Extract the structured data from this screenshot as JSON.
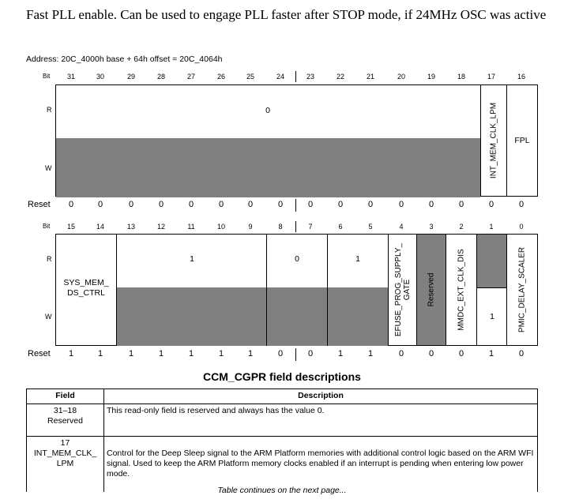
{
  "intro_text": "Fast PLL enable. Can be used to engage PLL faster after STOP mode, if 24MHz OSC was active",
  "address_text": "Address: 20C_4000h base + 64h offset = 20C_4064h",
  "row_labels": {
    "bit": "Bit",
    "read": "R",
    "write": "W",
    "reset": "Reset"
  },
  "upper": {
    "bits": [
      "31",
      "30",
      "29",
      "28",
      "27",
      "26",
      "25",
      "24",
      "23",
      "22",
      "21",
      "20",
      "19",
      "18",
      "17",
      "16"
    ],
    "read_value": "0",
    "field_17": "INT_MEM_CLK_LPM",
    "field_16": "FPL",
    "reset": [
      "0",
      "0",
      "0",
      "0",
      "0",
      "0",
      "0",
      "0",
      "0",
      "0",
      "0",
      "0",
      "0",
      "0",
      "0",
      "0"
    ]
  },
  "lower": {
    "bits": [
      "15",
      "14",
      "13",
      "12",
      "11",
      "10",
      "9",
      "8",
      "7",
      "6",
      "5",
      "4",
      "3",
      "2",
      "1",
      "0"
    ],
    "field_15_14": "SYS_MEM_ DS_CTRL",
    "read_13_9": "1",
    "read_8_7": "0",
    "read_6_5": "1",
    "field_4": "EFUSE_PROG_SUPPLY_ GATE",
    "field_3": "Reserved",
    "field_2": "MMDC_EXT_CLK_DIS",
    "write_1": "1",
    "field_0": "PMIC_DELAY_SCALER",
    "reset": [
      "1",
      "1",
      "1",
      "1",
      "1",
      "1",
      "1",
      "0",
      "0",
      "1",
      "1",
      "0",
      "0",
      "0",
      "1",
      "0"
    ]
  },
  "section_title": "CCM_CGPR field descriptions",
  "table": {
    "headers": [
      "Field",
      "Description"
    ],
    "rows": [
      {
        "field_line1": "31–18",
        "field_line2": "Reserved",
        "field_line3": "",
        "description": "This read-only field is reserved and always has the value 0."
      },
      {
        "field_line1": "17",
        "field_line2": "INT_MEM_CLK_",
        "field_line3": "LPM",
        "description": "Control for the Deep Sleep signal to the ARM Platform memories with additional control logic based on the ARM WFI signal. Used to keep the ARM Platform memory clocks enabled if an interrupt is pending when entering low power mode."
      }
    ]
  },
  "footer_text": "Table continues on the next page...",
  "colors": {
    "reserved_fill": "#808080",
    "border": "#000000"
  }
}
